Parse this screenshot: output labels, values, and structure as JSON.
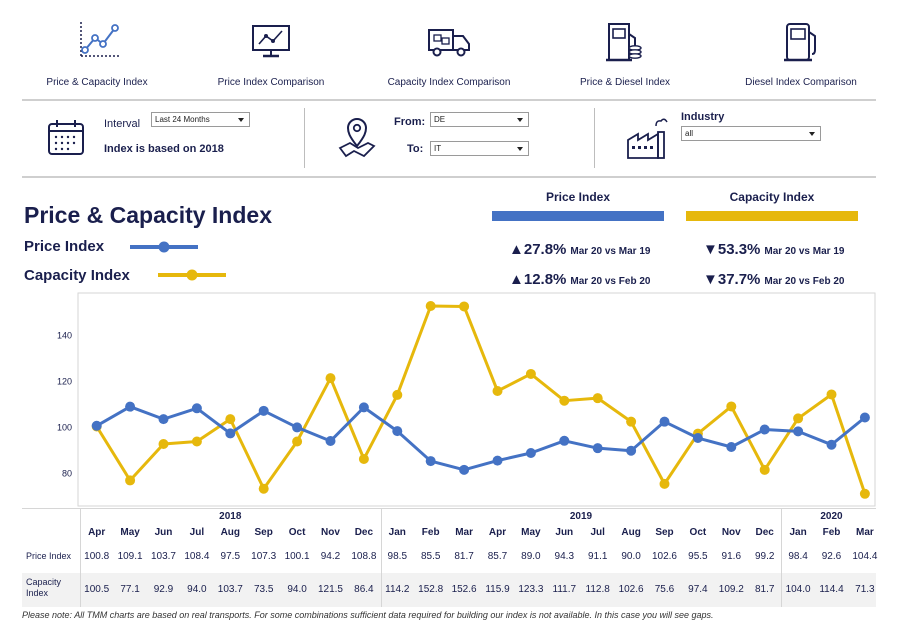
{
  "nav": {
    "items": [
      {
        "label": "Price & Capacity Index",
        "icon": "line-chart-icon"
      },
      {
        "label": "Price Index Comparison",
        "icon": "monitor-chart-icon"
      },
      {
        "label": "Capacity Index Comparison",
        "icon": "truck-icon"
      },
      {
        "label": "Price & Diesel Index",
        "icon": "fuel-pump-coins-icon"
      },
      {
        "label": "Diesel Index Comparison",
        "icon": "fuel-pump-icon"
      }
    ]
  },
  "filters": {
    "interval_label": "Interval",
    "interval_value": "Last 24 Months",
    "base_label": "Index is based on 2018",
    "from_label": "From:",
    "from_value": "DE",
    "to_label": "To:",
    "to_value": "IT",
    "industry_label": "Industry",
    "industry_value": "all"
  },
  "title": "Price & Capacity Index",
  "legend": {
    "price": "Price Index",
    "capacity": "Capacity Index"
  },
  "kpis": {
    "price": {
      "header": "Price Index",
      "yoy": {
        "arrow": "▲",
        "value": "27.8%",
        "compare": "Mar 20 vs Mar 19"
      },
      "mom": {
        "arrow": "▲",
        "value": "12.8%",
        "compare": "Mar 20 vs Feb 20"
      }
    },
    "capacity": {
      "header": "Capacity Index",
      "yoy": {
        "arrow": "▼",
        "value": "53.3%",
        "compare": "Mar 20 vs Mar 19"
      },
      "mom": {
        "arrow": "▼",
        "value": "37.7%",
        "compare": "Mar 20 vs Feb 20"
      }
    }
  },
  "colors": {
    "price": "#4472c4",
    "capacity": "#e6b80c",
    "navy": "#1a1f4d"
  },
  "table": {
    "row_price": "Price Index",
    "row_capacity": "Capacity Index",
    "years": [
      "2018",
      "2019",
      "2020"
    ]
  },
  "chart_data": {
    "type": "line",
    "title": "Price & Capacity Index",
    "categories": [
      "Apr",
      "May",
      "Jun",
      "Jul",
      "Aug",
      "Sep",
      "Oct",
      "Nov",
      "Dec",
      "Jan",
      "Feb",
      "Mar",
      "Apr",
      "May",
      "Jun",
      "Jul",
      "Aug",
      "Sep",
      "Oct",
      "Nov",
      "Dec",
      "Jan",
      "Feb",
      "Mar"
    ],
    "years": [
      {
        "label": "2018",
        "start": 0,
        "end": 8
      },
      {
        "label": "2019",
        "start": 9,
        "end": 20
      },
      {
        "label": "2020",
        "start": 21,
        "end": 23
      }
    ],
    "series": [
      {
        "name": "Price Index",
        "color": "#4472c4",
        "values": [
          100.8,
          109.1,
          103.7,
          108.4,
          97.5,
          107.3,
          100.1,
          94.2,
          108.8,
          98.5,
          85.5,
          81.7,
          85.7,
          89.0,
          94.3,
          91.1,
          90.0,
          102.6,
          95.5,
          91.6,
          99.2,
          98.4,
          92.6,
          104.4
        ]
      },
      {
        "name": "Capacity Index",
        "color": "#e6b80c",
        "values": [
          100.5,
          77.1,
          92.9,
          94.0,
          103.7,
          73.5,
          94.0,
          121.5,
          86.4,
          114.2,
          152.8,
          152.6,
          115.9,
          123.3,
          111.7,
          112.8,
          102.6,
          75.6,
          97.4,
          109.2,
          81.7,
          104.0,
          114.4,
          71.3
        ]
      }
    ],
    "yticks": [
      80,
      100,
      120,
      140
    ],
    "ylim": [
      66,
      158
    ],
    "grid": false,
    "legend": "top-left"
  },
  "footnote": "Please note: All TMM charts are based on real transports. For some combinations sufficient data required for building our index is not available. In this case you will see gaps."
}
